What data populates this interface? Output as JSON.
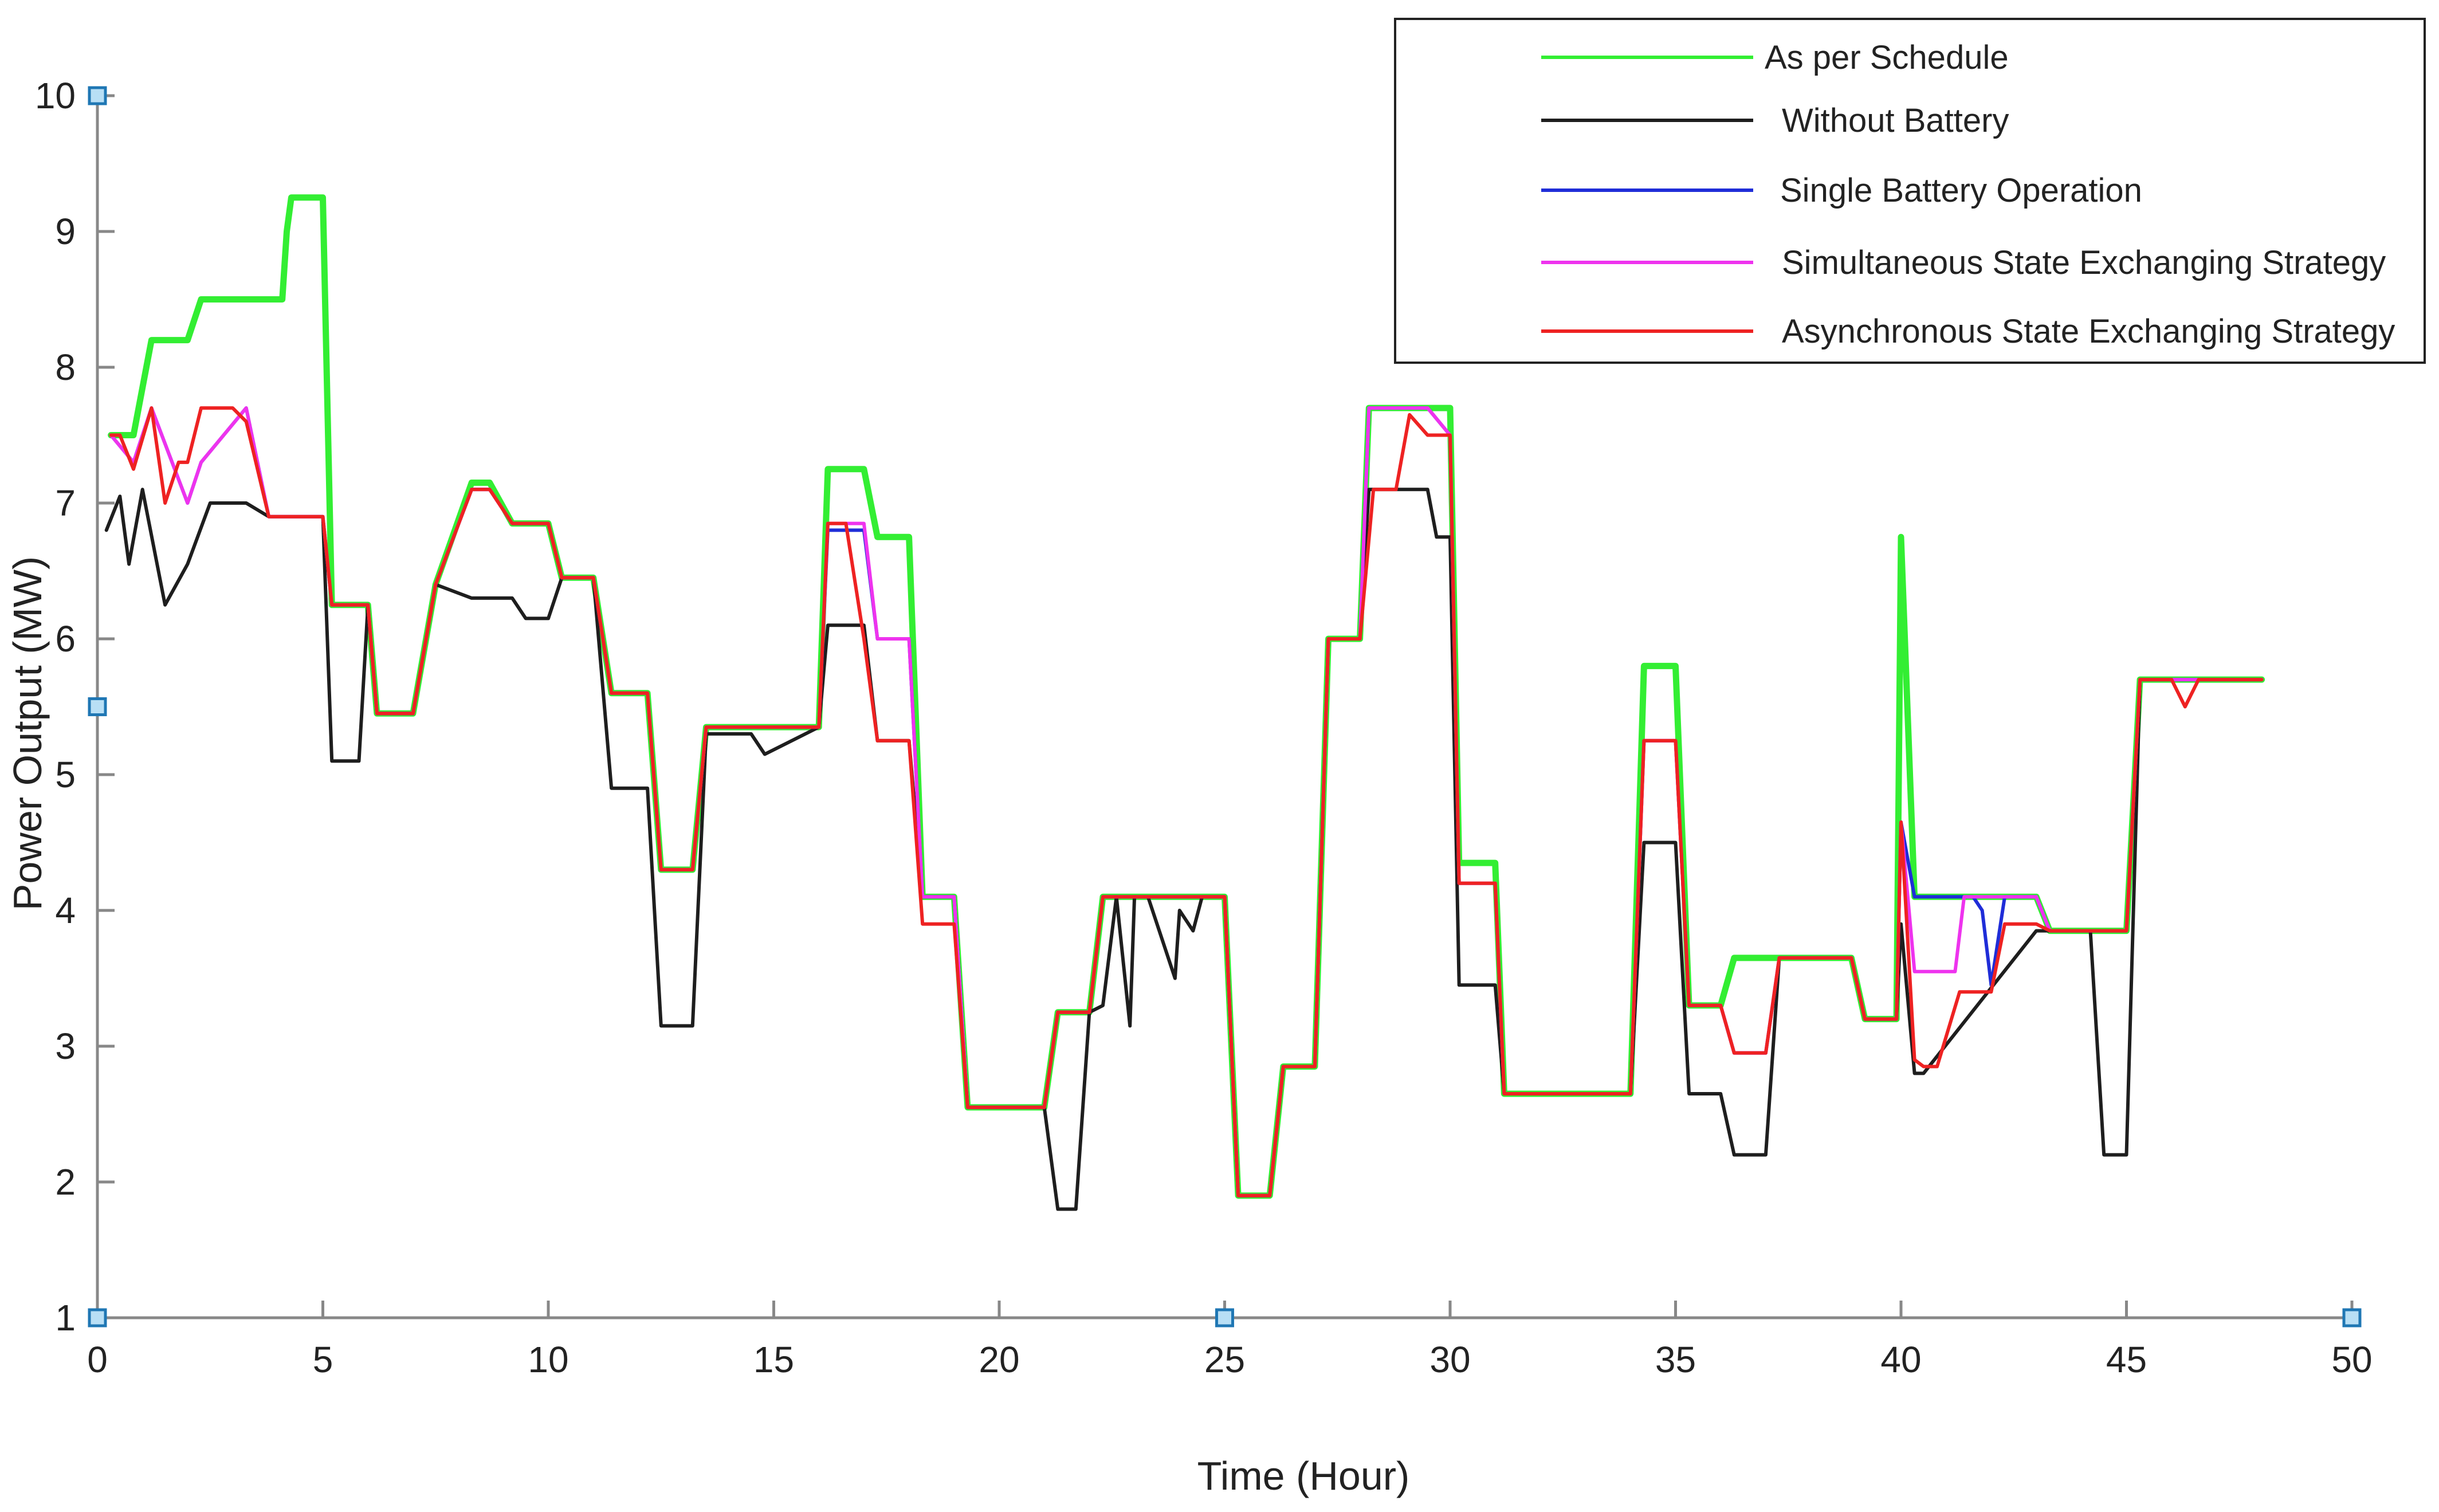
{
  "chart_data": {
    "type": "line",
    "title": "",
    "xlabel": "Time (Hour)",
    "ylabel": "Power Output (MW)",
    "xlim": [
      0,
      50
    ],
    "ylim": [
      1,
      10
    ],
    "xticks": [
      "0",
      "5",
      "10",
      "15",
      "20",
      "25",
      "30",
      "35",
      "40",
      "45",
      "50"
    ],
    "yticks": [
      "1",
      "2",
      "3",
      "4",
      "5",
      "6",
      "7",
      "8",
      "9",
      "10"
    ],
    "grid": false,
    "legend_position": "top-right",
    "series": [
      {
        "name": "As per Schedule",
        "color": "#33ee33",
        "x": [
          0.3,
          0.8,
          1.2,
          2.0,
          2.3,
          4.1,
          4.2,
          4.3,
          5.0,
          5.2,
          6.0,
          6.2,
          7.0,
          7.5,
          8.3,
          8.7,
          9.2,
          10.0,
          10.3,
          11.0,
          11.4,
          12.2,
          12.5,
          13.2,
          13.5,
          16.0,
          16.2,
          17.0,
          17.3,
          18.0,
          18.3,
          19.0,
          19.3,
          21.0,
          21.3,
          22.0,
          22.3,
          25.0,
          25.3,
          26.0,
          26.3,
          27.0,
          27.3,
          28.0,
          28.2,
          29.5,
          30.0,
          30.2,
          31.0,
          31.2,
          34.0,
          34.3,
          35.0,
          35.3,
          36.0,
          36.3,
          37.0,
          37.3,
          38.9,
          39.2,
          39.9,
          40.0,
          40.3,
          43.0,
          43.3,
          45.0,
          45.3,
          48.0
        ],
        "values": [
          7.5,
          7.5,
          8.2,
          8.2,
          8.5,
          8.5,
          9.0,
          9.25,
          9.25,
          6.25,
          6.25,
          5.45,
          5.45,
          6.4,
          7.15,
          7.15,
          6.85,
          6.85,
          6.45,
          6.45,
          5.6,
          5.6,
          4.3,
          4.3,
          5.35,
          5.35,
          7.25,
          7.25,
          6.75,
          6.75,
          4.1,
          4.1,
          2.55,
          2.55,
          3.25,
          3.25,
          4.1,
          4.1,
          1.9,
          1.9,
          2.85,
          2.85,
          6.0,
          6.0,
          7.7,
          7.7,
          7.7,
          4.35,
          4.35,
          2.65,
          2.65,
          5.8,
          5.8,
          3.3,
          3.3,
          3.65,
          3.65,
          3.65,
          3.65,
          3.2,
          3.2,
          6.75,
          4.1,
          4.1,
          3.85,
          3.85,
          5.7,
          5.7
        ]
      },
      {
        "name": "Without Battery",
        "color": "#1e1e1e",
        "x": [
          0.2,
          0.5,
          0.7,
          1.0,
          1.5,
          2.0,
          2.5,
          3.3,
          3.8,
          5.0,
          5.2,
          5.8,
          6.0,
          6.2,
          7.0,
          7.5,
          8.3,
          9.2,
          9.5,
          10.0,
          10.3,
          11.0,
          11.4,
          12.2,
          12.5,
          13.2,
          13.5,
          14.5,
          14.8,
          16.0,
          16.2,
          17.0,
          17.3,
          18.0,
          18.3,
          19.0,
          19.3,
          21.0,
          21.3,
          21.7,
          22.0,
          22.3,
          22.6,
          22.9,
          23.0,
          23.3,
          23.9,
          24.0,
          24.3,
          24.5,
          24.9,
          25.0,
          25.3,
          26.0,
          26.3,
          27.0,
          27.3,
          28.0,
          28.2,
          29.5,
          29.7,
          30.0,
          30.2,
          31.0,
          31.2,
          34.0,
          34.3,
          35.0,
          35.3,
          36.0,
          36.3,
          37.0,
          37.3,
          38.9,
          39.2,
          39.9,
          40.0,
          40.3,
          40.5,
          43.0,
          43.3,
          44.2,
          44.5,
          45.0,
          45.3,
          48.0
        ],
        "values": [
          6.8,
          7.05,
          6.55,
          7.1,
          6.25,
          6.55,
          7.0,
          7.0,
          6.9,
          6.9,
          5.1,
          5.1,
          6.25,
          5.45,
          5.45,
          6.4,
          6.3,
          6.3,
          6.15,
          6.15,
          6.45,
          6.45,
          4.9,
          4.9,
          3.15,
          3.15,
          5.3,
          5.3,
          5.15,
          5.35,
          6.1,
          6.1,
          5.25,
          5.25,
          4.1,
          4.1,
          2.55,
          2.55,
          1.8,
          1.8,
          3.25,
          3.3,
          4.1,
          3.15,
          4.1,
          4.1,
          3.5,
          4.0,
          3.85,
          4.1,
          4.1,
          4.1,
          1.9,
          1.9,
          2.85,
          2.85,
          6.0,
          6.0,
          7.1,
          7.1,
          6.75,
          6.75,
          3.45,
          3.45,
          2.65,
          2.65,
          4.5,
          4.5,
          2.65,
          2.65,
          2.2,
          2.2,
          3.65,
          3.65,
          3.2,
          3.2,
          3.9,
          2.8,
          2.8,
          3.85,
          3.85,
          3.85,
          2.2,
          2.2,
          5.7,
          5.7
        ]
      },
      {
        "name": "Single Battery Operation",
        "color": "#1f2dd8",
        "x": [
          0.3,
          0.8,
          1.2,
          2.0,
          2.3,
          3.3,
          3.8,
          5.0,
          5.2,
          6.0,
          6.2,
          7.0,
          7.5,
          8.3,
          8.7,
          9.2,
          10.0,
          10.3,
          11.0,
          11.4,
          12.2,
          12.5,
          13.2,
          13.5,
          16.0,
          16.2,
          16.6,
          17.0,
          17.3,
          18.0,
          18.3,
          19.0,
          19.3,
          21.0,
          21.3,
          22.0,
          22.3,
          25.0,
          25.3,
          26.0,
          26.3,
          27.0,
          27.3,
          28.0,
          28.2,
          29.5,
          30.0,
          30.2,
          31.0,
          31.2,
          34.0,
          34.3,
          35.0,
          35.3,
          36.0,
          36.3,
          37.0,
          37.3,
          38.9,
          39.2,
          39.9,
          40.0,
          40.3,
          41.6,
          41.8,
          42.0,
          42.3,
          43.0,
          43.3,
          45.0,
          45.3,
          48.0
        ],
        "values": [
          7.5,
          7.3,
          7.7,
          7.0,
          7.3,
          7.7,
          6.9,
          6.9,
          6.25,
          6.25,
          5.45,
          5.45,
          6.4,
          7.1,
          7.1,
          6.85,
          6.85,
          6.45,
          6.45,
          5.6,
          5.6,
          4.3,
          4.3,
          5.35,
          5.35,
          6.8,
          6.8,
          6.8,
          6.0,
          6.0,
          4.1,
          4.1,
          2.55,
          2.55,
          3.25,
          3.25,
          4.1,
          4.1,
          1.9,
          1.9,
          2.85,
          2.85,
          6.0,
          6.0,
          7.7,
          7.7,
          7.5,
          4.2,
          4.2,
          2.65,
          2.65,
          5.25,
          5.25,
          3.3,
          3.3,
          2.95,
          2.95,
          3.65,
          3.65,
          3.2,
          3.2,
          4.65,
          4.1,
          4.1,
          4.0,
          3.45,
          4.1,
          4.1,
          3.85,
          3.85,
          5.7,
          5.7
        ]
      },
      {
        "name": "Simultaneous State Exchanging Strategy",
        "color": "#ee33ee",
        "x": [
          0.3,
          0.8,
          1.2,
          2.0,
          2.3,
          3.3,
          3.8,
          5.0,
          5.2,
          6.0,
          6.2,
          7.0,
          7.5,
          8.3,
          8.7,
          9.2,
          10.0,
          10.3,
          11.0,
          11.4,
          12.2,
          12.5,
          13.2,
          13.5,
          16.0,
          16.2,
          16.6,
          17.0,
          17.3,
          18.0,
          18.3,
          19.0,
          19.3,
          21.0,
          21.3,
          22.0,
          22.3,
          25.0,
          25.3,
          26.0,
          26.3,
          27.0,
          27.3,
          28.0,
          28.2,
          29.5,
          30.0,
          30.2,
          31.0,
          31.2,
          34.0,
          34.3,
          35.0,
          35.3,
          36.0,
          36.3,
          37.0,
          37.3,
          38.9,
          39.2,
          39.9,
          40.0,
          40.3,
          40.5,
          41.2,
          41.4,
          43.0,
          43.3,
          45.0,
          45.3,
          48.0
        ],
        "values": [
          7.5,
          7.3,
          7.7,
          7.0,
          7.3,
          7.7,
          6.9,
          6.9,
          6.25,
          6.25,
          5.45,
          5.45,
          6.4,
          7.1,
          7.1,
          6.85,
          6.85,
          6.45,
          6.45,
          5.6,
          5.6,
          4.3,
          4.3,
          5.35,
          5.35,
          6.85,
          6.85,
          6.85,
          6.0,
          6.0,
          4.1,
          4.1,
          2.55,
          2.55,
          3.25,
          3.25,
          4.1,
          4.1,
          1.9,
          1.9,
          2.85,
          2.85,
          6.0,
          6.0,
          7.7,
          7.7,
          7.5,
          4.2,
          4.2,
          2.65,
          2.65,
          5.25,
          5.25,
          3.3,
          3.3,
          2.95,
          2.95,
          3.65,
          3.65,
          3.2,
          3.2,
          4.65,
          3.55,
          3.55,
          3.55,
          4.1,
          4.1,
          3.85,
          3.85,
          5.7,
          5.7
        ]
      },
      {
        "name": "Asynchronous State Exchanging Strategy",
        "color": "#ee2222",
        "x": [
          0.3,
          0.5,
          0.8,
          1.2,
          1.5,
          1.8,
          2.0,
          2.3,
          3.0,
          3.3,
          3.8,
          5.0,
          5.2,
          6.0,
          6.2,
          7.0,
          7.5,
          8.3,
          8.7,
          9.2,
          10.0,
          10.3,
          11.0,
          11.4,
          12.2,
          12.5,
          13.2,
          13.5,
          16.0,
          16.2,
          16.6,
          17.0,
          17.3,
          18.0,
          18.3,
          19.0,
          19.3,
          21.0,
          21.3,
          22.0,
          22.3,
          25.0,
          25.3,
          26.0,
          26.3,
          27.0,
          27.3,
          28.0,
          28.3,
          28.8,
          29.1,
          29.5,
          30.0,
          30.2,
          31.0,
          31.2,
          34.0,
          34.3,
          35.0,
          35.3,
          36.0,
          36.3,
          37.0,
          37.3,
          38.9,
          39.2,
          39.9,
          40.0,
          40.3,
          40.5,
          40.8,
          41.3,
          41.6,
          42.0,
          42.3,
          43.0,
          43.3,
          45.0,
          45.3,
          46.0,
          46.3,
          46.6,
          48.0
        ],
        "values": [
          7.5,
          7.5,
          7.25,
          7.7,
          7.0,
          7.3,
          7.3,
          7.7,
          7.7,
          7.6,
          6.9,
          6.9,
          6.25,
          6.25,
          5.45,
          5.45,
          6.4,
          7.1,
          7.1,
          6.85,
          6.85,
          6.45,
          6.45,
          5.6,
          5.6,
          4.3,
          4.3,
          5.35,
          5.35,
          6.85,
          6.85,
          6.0,
          5.25,
          5.25,
          3.9,
          3.9,
          2.55,
          2.55,
          3.25,
          3.25,
          4.1,
          4.1,
          1.9,
          1.9,
          2.85,
          2.85,
          6.0,
          6.0,
          7.1,
          7.1,
          7.65,
          7.5,
          7.5,
          4.2,
          4.2,
          2.65,
          2.65,
          5.25,
          5.25,
          3.3,
          3.3,
          2.95,
          2.95,
          3.65,
          3.65,
          3.2,
          3.2,
          4.65,
          2.9,
          2.85,
          2.85,
          3.4,
          3.4,
          3.4,
          3.9,
          3.9,
          3.85,
          3.85,
          5.7,
          5.7,
          5.5,
          5.7,
          5.7
        ]
      }
    ]
  }
}
